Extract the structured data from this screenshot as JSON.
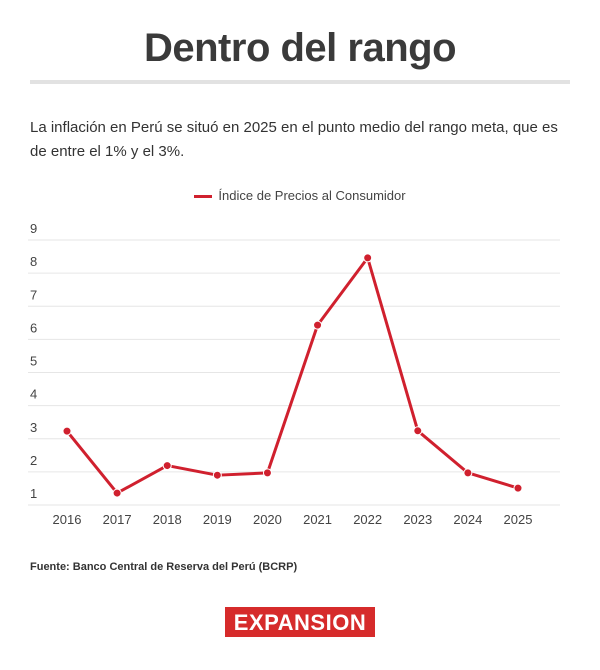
{
  "header": {
    "title": "Dentro del rango",
    "subtitle": "La inflación en Perú se situó en 2025 en el punto medio del rango meta, que es de entre el 1% y el 3%."
  },
  "chart_data": {
    "type": "line",
    "title": "",
    "xlabel": "",
    "ylabel": "",
    "categories": [
      "2016",
      "2017",
      "2018",
      "2019",
      "2020",
      "2021",
      "2022",
      "2023",
      "2024",
      "2025"
    ],
    "series": [
      {
        "name": "Índice de Precios al Consumidor",
        "color": "#d0202e",
        "values": [
          3.23,
          1.36,
          2.19,
          1.9,
          1.97,
          6.43,
          8.46,
          3.24,
          1.97,
          1.51
        ]
      }
    ],
    "ylim": [
      1,
      9
    ],
    "yticks": [
      1,
      2,
      3,
      4,
      5,
      6,
      7,
      8,
      9
    ],
    "grid": true,
    "legend_position": "top-center"
  },
  "footer": {
    "source": "Fuente: Banco Central de Reserva del Perú (BCRP)",
    "logo_text": "EXPANSION",
    "logo_color": "#d62b2b"
  }
}
